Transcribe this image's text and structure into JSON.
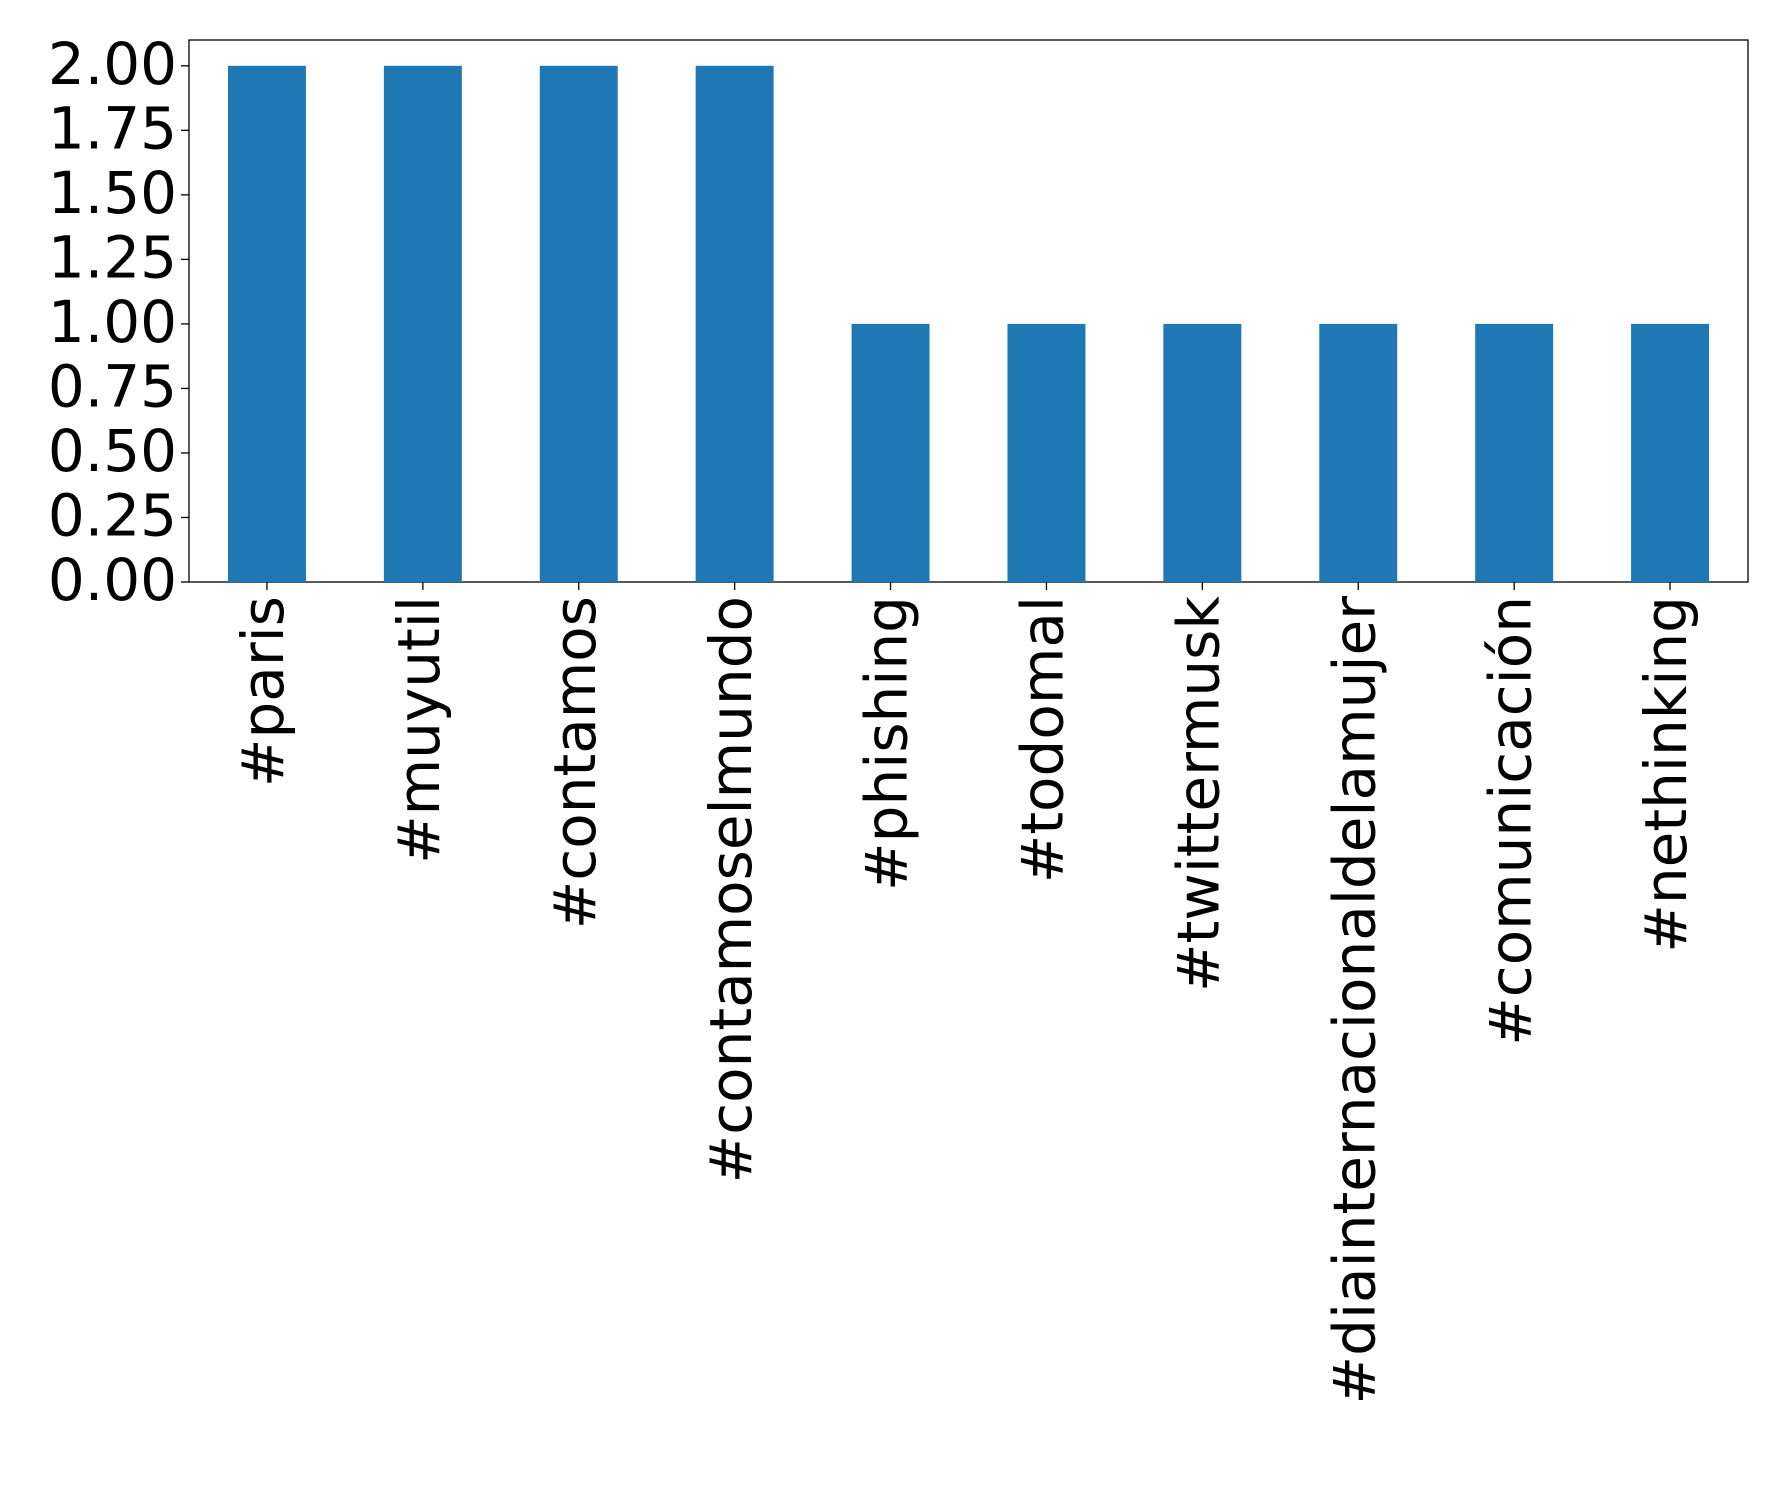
{
  "chart_data": {
    "type": "bar",
    "categories": [
      "#paris",
      "#muyutil",
      "#contamos",
      "#contamoselmundo",
      "#phishing",
      "#todomal",
      "#twittermusk",
      "#diainternacionaldelamujer",
      "#comunicación",
      "#nethinking"
    ],
    "values": [
      2,
      2,
      2,
      2,
      1,
      1,
      1,
      1,
      1,
      1
    ],
    "color": "#1f77b4",
    "ylim": [
      0,
      2.1
    ],
    "yticks": [
      {
        "value": 0,
        "label": "0.00"
      },
      {
        "value": 0.25,
        "label": "0.25"
      },
      {
        "value": 0.5,
        "label": "0.50"
      },
      {
        "value": 0.75,
        "label": "0.75"
      },
      {
        "value": 1,
        "label": "1.00"
      },
      {
        "value": 1.25,
        "label": "1.25"
      },
      {
        "value": 1.5,
        "label": "1.50"
      },
      {
        "value": 1.75,
        "label": "1.75"
      },
      {
        "value": 2,
        "label": "2.00"
      }
    ],
    "grid": false
  }
}
